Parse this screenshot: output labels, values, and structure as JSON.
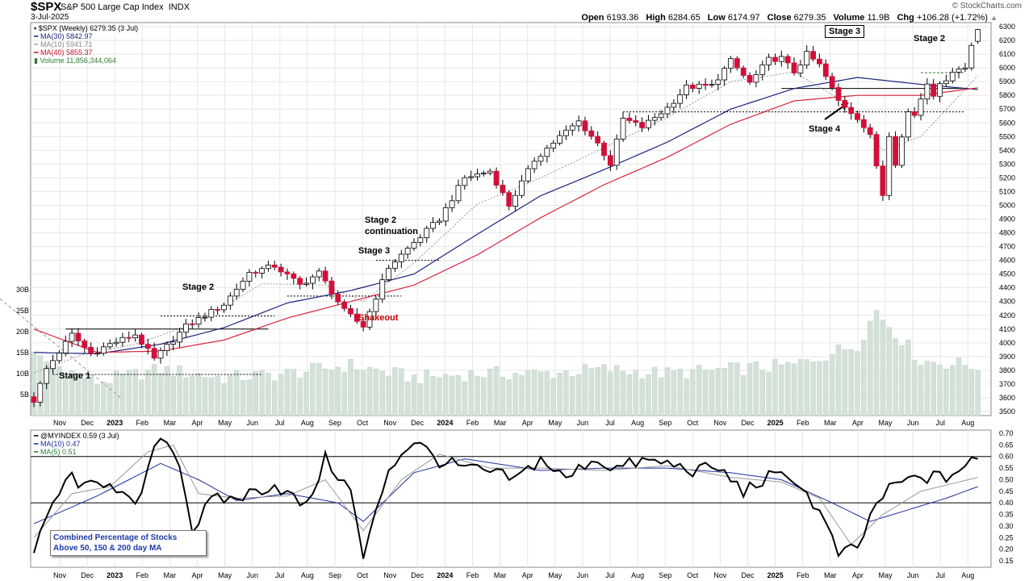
{
  "header": {
    "symbol": "$SPX",
    "name": "S&P 500 Large Cap Index",
    "exchange": "INDX",
    "date": "3-Jul-2025",
    "credit": "© StockCharts.com",
    "open_label": "Open",
    "open": "6193.36",
    "high_label": "High",
    "high": "6284.65",
    "low_label": "Low",
    "low": "6174.97",
    "close_label": "Close",
    "close": "6279.35",
    "volume_label": "Volume",
    "volume": "11.9B",
    "chg_label": "Chg",
    "chg": "+106.28 (+1.72%)",
    "chg_arrow": "▲"
  },
  "legend_top": {
    "price": "$SPX (Weekly) 6279.35 (3 Jul)",
    "ma30": "MA(30) 5842.97",
    "ma10": "MA(10) 5941.71",
    "ma40": "MA(40) 5855.37",
    "volume": "Volume 11,856,344,064"
  },
  "legend_bottom": {
    "index": "@MYINDEX 0.59 (3 Jul)",
    "ma10": "MA(10) 0.47",
    "ma5": "MA(5) 0.51"
  },
  "annotations": {
    "stage1": "Stage 1",
    "stage2a": "Stage 2",
    "stage2cont_1": "Stage 2",
    "stage2cont_2": "continuation",
    "stage3a": "Stage 3",
    "shakeout": "Shakeout",
    "stage3b": "Stage 3",
    "stage2b": "Stage 2",
    "stage4": "Stage 4",
    "info_line1": "Combined Percentage of Stocks",
    "info_line2": "Above 50, 150 & 200 day MA"
  },
  "colors": {
    "up": "#ffffff",
    "down": "#d0103a",
    "ma30": "#1a237e",
    "ma40": "#d8243a",
    "ma10": "#999999",
    "volume": "#d3e1d8",
    "grid": "#e6e6e6",
    "osc": "#000000",
    "osc_ma10": "#1f2f9f",
    "osc_ma5": "#999999",
    "annotation_red": "#c00000"
  },
  "chart_data": [
    {
      "type": "candlestick",
      "title": "$SPX S&P 500 Large Cap Index (Weekly)",
      "y_axis": {
        "ticks": [
          3500,
          3600,
          3700,
          3800,
          3900,
          4000,
          4100,
          4200,
          4300,
          4400,
          4500,
          4600,
          4700,
          4800,
          4900,
          5000,
          5100,
          5200,
          5300,
          5400,
          5500,
          5600,
          5700,
          5800,
          5900,
          6000,
          6100,
          6200,
          6300
        ]
      },
      "x_axis": {
        "ticks": [
          "Nov",
          "Dec",
          "2023",
          "Feb",
          "Mar",
          "Apr",
          "May",
          "Jun",
          "Jul",
          "Aug",
          "Sep",
          "Oct",
          "Nov",
          "Dec",
          "2024",
          "Feb",
          "Mar",
          "Apr",
          "May",
          "Jun",
          "Jul",
          "Aug",
          "Sep",
          "Oct",
          "Nov",
          "Dec",
          "2025",
          "Feb",
          "Mar",
          "Apr",
          "May",
          "Jun",
          "Jul",
          "Aug"
        ]
      },
      "volume_axis": {
        "ticks": [
          "5B",
          "10B",
          "15B",
          "20B",
          "25B",
          "30B"
        ]
      },
      "grid": true,
      "last": {
        "open": 6193.36,
        "high": 6284.65,
        "low": 6174.97,
        "close": 6279.35
      },
      "price_keypoints": [
        [
          0,
          3580
        ],
        [
          2,
          3810
        ],
        [
          6,
          4060
        ],
        [
          9,
          3920
        ],
        [
          12,
          3990
        ],
        [
          16,
          4060
        ],
        [
          19,
          3880
        ],
        [
          24,
          4120
        ],
        [
          30,
          4280
        ],
        [
          34,
          4510
        ],
        [
          38,
          4560
        ],
        [
          42,
          4420
        ],
        [
          45,
          4510
        ],
        [
          49,
          4230
        ],
        [
          52,
          4120
        ],
        [
          56,
          4550
        ],
        [
          60,
          4730
        ],
        [
          64,
          4900
        ],
        [
          68,
          5200
        ],
        [
          72,
          5250
        ],
        [
          75,
          5000
        ],
        [
          79,
          5330
        ],
        [
          83,
          5500
        ],
        [
          86,
          5610
        ],
        [
          89,
          5450
        ],
        [
          91,
          5300
        ],
        [
          93,
          5630
        ],
        [
          96,
          5570
        ],
        [
          100,
          5710
        ],
        [
          103,
          5860
        ],
        [
          107,
          5870
        ],
        [
          110,
          6050
        ],
        [
          113,
          5890
        ],
        [
          116,
          6060
        ],
        [
          118,
          6070
        ],
        [
          120,
          5970
        ],
        [
          122,
          6100
        ],
        [
          124,
          6020
        ],
        [
          127,
          5760
        ],
        [
          130,
          5640
        ],
        [
          132,
          5500
        ],
        [
          134,
          5080
        ],
        [
          135,
          5520
        ],
        [
          136,
          5310
        ],
        [
          138,
          5680
        ],
        [
          139,
          5660
        ],
        [
          141,
          5900
        ],
        [
          142,
          5810
        ],
        [
          145,
          5980
        ],
        [
          147,
          6000
        ],
        [
          148,
          6170
        ],
        [
          149,
          6279
        ]
      ],
      "ma30_keypoints": [
        [
          0,
          3930
        ],
        [
          10,
          3920
        ],
        [
          20,
          3990
        ],
        [
          30,
          4110
        ],
        [
          40,
          4290
        ],
        [
          50,
          4380
        ],
        [
          60,
          4500
        ],
        [
          70,
          4790
        ],
        [
          80,
          5070
        ],
        [
          90,
          5260
        ],
        [
          100,
          5460
        ],
        [
          110,
          5700
        ],
        [
          120,
          5850
        ],
        [
          130,
          5930
        ],
        [
          140,
          5880
        ],
        [
          149,
          5843
        ]
      ],
      "ma40_keypoints": [
        [
          0,
          4100
        ],
        [
          10,
          3930
        ],
        [
          20,
          3940
        ],
        [
          30,
          4020
        ],
        [
          40,
          4180
        ],
        [
          50,
          4300
        ],
        [
          60,
          4420
        ],
        [
          70,
          4640
        ],
        [
          80,
          4910
        ],
        [
          90,
          5150
        ],
        [
          100,
          5350
        ],
        [
          110,
          5590
        ],
        [
          120,
          5760
        ],
        [
          130,
          5800
        ],
        [
          140,
          5800
        ],
        [
          149,
          5855
        ]
      ],
      "ma10_keypoints": [
        [
          0,
          3780
        ],
        [
          8,
          3920
        ],
        [
          16,
          3990
        ],
        [
          26,
          4150
        ],
        [
          36,
          4430
        ],
        [
          46,
          4420
        ],
        [
          52,
          4300
        ],
        [
          60,
          4580
        ],
        [
          70,
          5010
        ],
        [
          80,
          5200
        ],
        [
          90,
          5420
        ],
        [
          100,
          5640
        ],
        [
          110,
          5900
        ],
        [
          120,
          5970
        ],
        [
          128,
          5750
        ],
        [
          134,
          5400
        ],
        [
          140,
          5500
        ],
        [
          149,
          5942
        ]
      ],
      "volume_keypoints": [
        [
          0,
          14
        ],
        [
          10,
          8
        ],
        [
          20,
          11
        ],
        [
          30,
          9
        ],
        [
          40,
          10
        ],
        [
          50,
          12
        ],
        [
          60,
          9
        ],
        [
          70,
          10
        ],
        [
          80,
          10
        ],
        [
          90,
          11
        ],
        [
          100,
          10
        ],
        [
          110,
          11
        ],
        [
          120,
          12
        ],
        [
          130,
          17
        ],
        [
          133,
          25
        ],
        [
          140,
          13
        ],
        [
          149,
          11.9
        ]
      ]
    },
    {
      "type": "line",
      "title": "@MYINDEX Combined Percentage of Stocks Above 50, 150 & 200 day MA",
      "y_axis": {
        "ticks": [
          0.15,
          0.2,
          0.25,
          0.3,
          0.35,
          0.4,
          0.45,
          0.5,
          0.55,
          0.6,
          0.65,
          0.7
        ]
      },
      "reference_lines": [
        0.4,
        0.6
      ],
      "last": 0.59,
      "series": [
        {
          "name": "@MYINDEX",
          "keypoints": [
            [
              0,
              0.18
            ],
            [
              3,
              0.4
            ],
            [
              6,
              0.52
            ],
            [
              8,
              0.46
            ],
            [
              12,
              0.5
            ],
            [
              16,
              0.37
            ],
            [
              20,
              0.7
            ],
            [
              23,
              0.58
            ],
            [
              25,
              0.28
            ],
            [
              28,
              0.41
            ],
            [
              32,
              0.42
            ],
            [
              38,
              0.48
            ],
            [
              43,
              0.38
            ],
            [
              46,
              0.59
            ],
            [
              50,
              0.45
            ],
            [
              52,
              0.16
            ],
            [
              56,
              0.55
            ],
            [
              60,
              0.67
            ],
            [
              64,
              0.58
            ],
            [
              68,
              0.55
            ],
            [
              72,
              0.53
            ],
            [
              76,
              0.5
            ],
            [
              80,
              0.59
            ],
            [
              84,
              0.5
            ],
            [
              88,
              0.59
            ],
            [
              92,
              0.55
            ],
            [
              96,
              0.58
            ],
            [
              100,
              0.57
            ],
            [
              104,
              0.54
            ],
            [
              108,
              0.55
            ],
            [
              112,
              0.45
            ],
            [
              116,
              0.51
            ],
            [
              120,
              0.51
            ],
            [
              124,
              0.36
            ],
            [
              127,
              0.18
            ],
            [
              130,
              0.2
            ],
            [
              133,
              0.4
            ],
            [
              136,
              0.48
            ],
            [
              140,
              0.51
            ],
            [
              144,
              0.51
            ],
            [
              149,
              0.59
            ]
          ]
        },
        {
          "name": "MA(10)",
          "keypoints": [
            [
              0,
              0.31
            ],
            [
              10,
              0.43
            ],
            [
              20,
              0.57
            ],
            [
              26,
              0.5
            ],
            [
              32,
              0.41
            ],
            [
              40,
              0.44
            ],
            [
              48,
              0.4
            ],
            [
              52,
              0.32
            ],
            [
              60,
              0.53
            ],
            [
              68,
              0.59
            ],
            [
              80,
              0.54
            ],
            [
              90,
              0.55
            ],
            [
              100,
              0.55
            ],
            [
              110,
              0.53
            ],
            [
              118,
              0.5
            ],
            [
              126,
              0.4
            ],
            [
              132,
              0.32
            ],
            [
              138,
              0.37
            ],
            [
              144,
              0.42
            ],
            [
              149,
              0.47
            ]
          ]
        },
        {
          "name": "MA(5)",
          "keypoints": [
            [
              0,
              0.25
            ],
            [
              6,
              0.44
            ],
            [
              12,
              0.47
            ],
            [
              18,
              0.62
            ],
            [
              22,
              0.65
            ],
            [
              26,
              0.44
            ],
            [
              32,
              0.42
            ],
            [
              40,
              0.43
            ],
            [
              46,
              0.5
            ],
            [
              52,
              0.28
            ],
            [
              58,
              0.5
            ],
            [
              64,
              0.61
            ],
            [
              72,
              0.55
            ],
            [
              80,
              0.55
            ],
            [
              90,
              0.54
            ],
            [
              100,
              0.56
            ],
            [
              110,
              0.51
            ],
            [
              118,
              0.49
            ],
            [
              124,
              0.42
            ],
            [
              129,
              0.22
            ],
            [
              134,
              0.35
            ],
            [
              140,
              0.45
            ],
            [
              149,
              0.51
            ]
          ]
        }
      ]
    }
  ]
}
